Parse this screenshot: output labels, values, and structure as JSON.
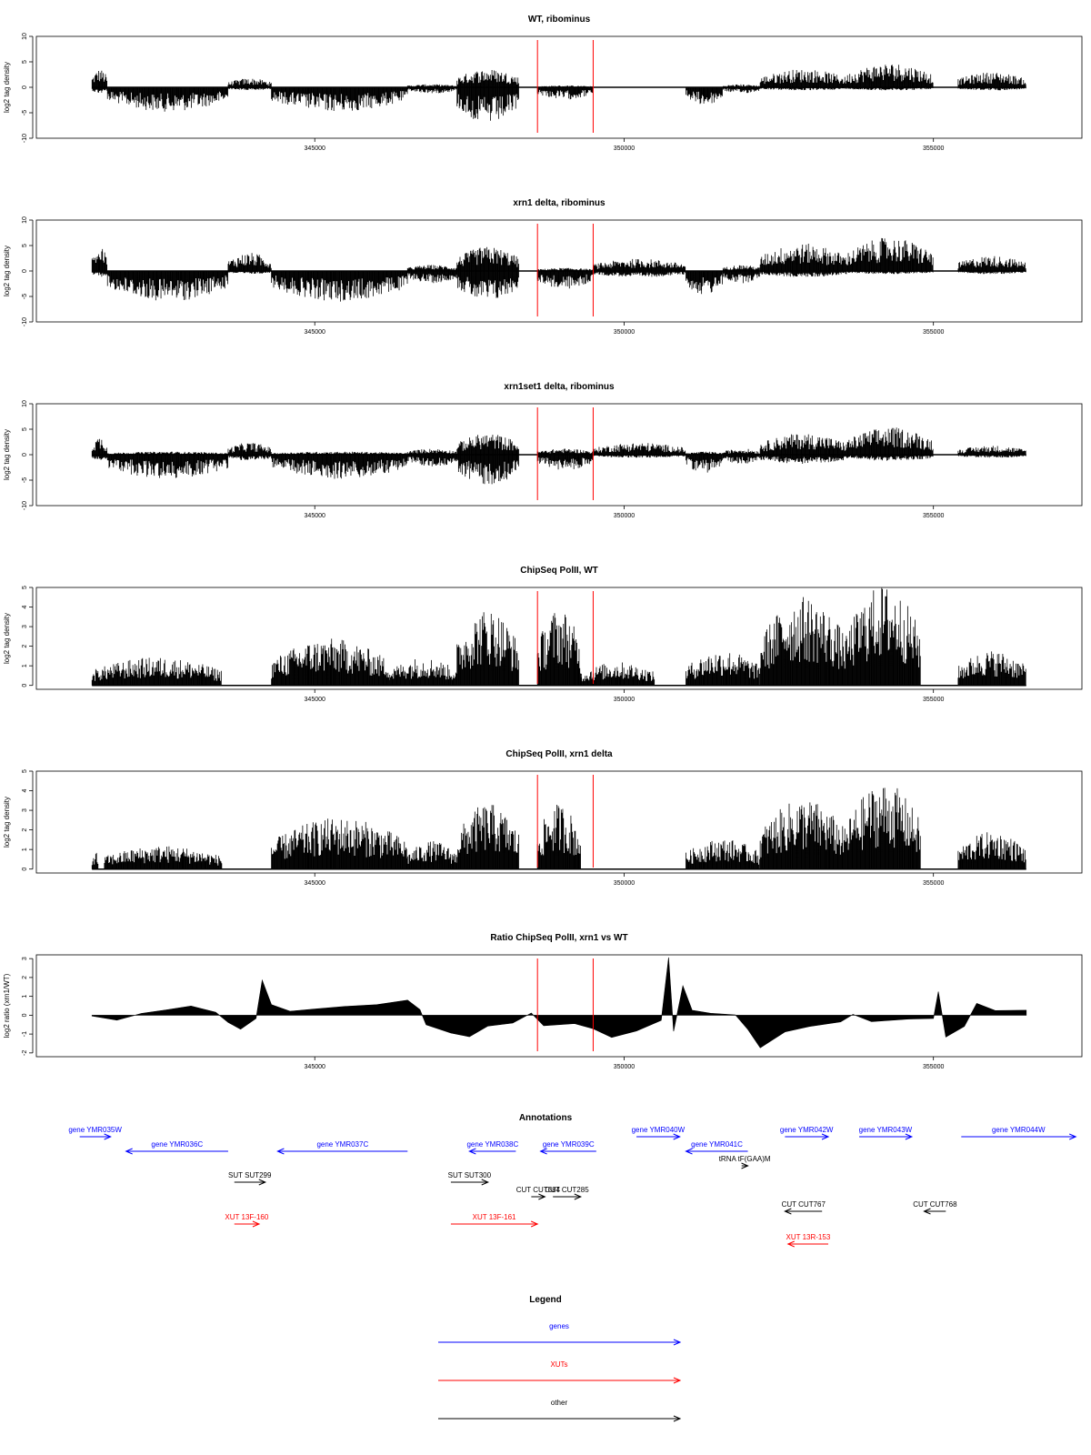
{
  "colors": {
    "frame": "#000000",
    "bars": "#000000",
    "marker": "#ff0000",
    "gene": "#0000ff",
    "xut": "#ff0000",
    "other": "#000000"
  },
  "chart_data": [
    {
      "type": "bar",
      "title": "WT, ribominus",
      "ylabel": "log2 tag density",
      "xlim": [
        340500,
        357400
      ],
      "ylim": [
        -10,
        10
      ],
      "yticks": [
        10,
        5,
        0,
        -5,
        -10
      ],
      "xticks": [
        345000,
        350000,
        355000
      ],
      "markers": [
        348600,
        349500
      ],
      "segments": [
        [
          341400,
          341650,
          3,
          -1
        ],
        [
          341650,
          343600,
          0,
          -4
        ],
        [
          343600,
          344300,
          1.5,
          -0.5
        ],
        [
          344300,
          346500,
          0,
          -4
        ],
        [
          346500,
          347300,
          0.5,
          -1
        ],
        [
          347300,
          348300,
          3,
          -6
        ],
        [
          348600,
          349500,
          0.3,
          -2
        ],
        [
          351000,
          351600,
          0,
          -3
        ],
        [
          351600,
          352200,
          0.5,
          -1
        ],
        [
          352200,
          353600,
          3,
          -0.5
        ],
        [
          353600,
          355000,
          4,
          -0.5
        ],
        [
          355400,
          356500,
          2.5,
          -0.5
        ]
      ]
    },
    {
      "type": "bar",
      "title": "xrn1 delta, ribominus",
      "ylabel": "log2 tag density",
      "xlim": [
        340500,
        357400
      ],
      "ylim": [
        -10,
        10
      ],
      "yticks": [
        10,
        5,
        0,
        -5,
        -10
      ],
      "xticks": [
        345000,
        350000,
        355000
      ],
      "markers": [
        348600,
        349500
      ],
      "segments": [
        [
          341400,
          341650,
          4,
          -1
        ],
        [
          341650,
          343600,
          0,
          -5
        ],
        [
          343600,
          344300,
          3,
          -0.5
        ],
        [
          344300,
          346500,
          0,
          -5
        ],
        [
          346500,
          347300,
          1,
          -2
        ],
        [
          347300,
          348300,
          4,
          -5
        ],
        [
          348600,
          349500,
          0.5,
          -3
        ],
        [
          349500,
          351000,
          2,
          -1
        ],
        [
          351000,
          351600,
          0,
          -4
        ],
        [
          351600,
          352200,
          1,
          -2
        ],
        [
          352200,
          353600,
          4.5,
          -1
        ],
        [
          353600,
          355000,
          5.5,
          -0.5
        ],
        [
          355400,
          356500,
          2.5,
          -0.5
        ]
      ]
    },
    {
      "type": "bar",
      "title": "xrn1set1 delta, ribominus",
      "ylabel": "log2 tag density",
      "xlim": [
        340500,
        357400
      ],
      "ylim": [
        -10,
        10
      ],
      "yticks": [
        10,
        5,
        0,
        -5,
        -10
      ],
      "xticks": [
        345000,
        350000,
        355000
      ],
      "markers": [
        348600,
        349500
      ],
      "segments": [
        [
          341400,
          341650,
          3,
          -1
        ],
        [
          341650,
          343600,
          0.5,
          -4
        ],
        [
          343600,
          344300,
          2,
          -1
        ],
        [
          344300,
          346500,
          0.5,
          -4
        ],
        [
          346500,
          347300,
          1,
          -2
        ],
        [
          347300,
          348300,
          3.5,
          -5
        ],
        [
          348600,
          349500,
          1,
          -2.5
        ],
        [
          349500,
          351000,
          2,
          -0.5
        ],
        [
          351000,
          351600,
          0.5,
          -3
        ],
        [
          351600,
          352200,
          1,
          -1.5
        ],
        [
          352200,
          353600,
          3.5,
          -1.5
        ],
        [
          353600,
          355000,
          4.5,
          -1
        ],
        [
          355400,
          356500,
          1.5,
          -0.5
        ]
      ]
    },
    {
      "type": "bar",
      "title": "ChipSeq PolII, WT",
      "ylabel": "log2 tag density",
      "xlim": [
        340500,
        357400
      ],
      "ylim": [
        -0.2,
        5
      ],
      "yticks": [
        5,
        4,
        3,
        2,
        1,
        0
      ],
      "xticks": [
        345000,
        350000,
        355000
      ],
      "markers": [
        348600,
        349500
      ],
      "segments": [
        [
          341400,
          343500,
          1.2,
          0
        ],
        [
          344300,
          346200,
          2,
          0
        ],
        [
          346200,
          347300,
          1.2,
          0
        ],
        [
          347300,
          348300,
          3.3,
          0
        ],
        [
          348600,
          349300,
          3.3,
          0
        ],
        [
          349300,
          350500,
          1,
          0
        ],
        [
          351000,
          352200,
          1.5,
          0
        ],
        [
          352200,
          353600,
          3.8,
          0
        ],
        [
          353600,
          354800,
          4.3,
          0
        ],
        [
          355400,
          356500,
          1.5,
          0
        ]
      ]
    },
    {
      "type": "bar",
      "title": "ChipSeq PolII, xrn1 delta",
      "ylabel": "log2 tag density",
      "xlim": [
        340500,
        357400
      ],
      "ylim": [
        -0.2,
        5
      ],
      "yticks": [
        5,
        4,
        3,
        2,
        1,
        0
      ],
      "xticks": [
        345000,
        350000,
        355000
      ],
      "markers": [
        348600,
        349500
      ],
      "segments": [
        [
          341400,
          341500,
          0.8,
          0
        ],
        [
          341600,
          343500,
          1,
          0
        ],
        [
          344300,
          346500,
          2.2,
          0
        ],
        [
          346500,
          347300,
          1.2,
          0
        ],
        [
          347300,
          348300,
          2.8,
          0
        ],
        [
          348600,
          349300,
          2.8,
          0
        ],
        [
          351000,
          352200,
          1.3,
          0
        ],
        [
          352200,
          353600,
          3,
          0
        ],
        [
          353600,
          354800,
          3.7,
          0
        ],
        [
          355400,
          356500,
          1.6,
          0
        ]
      ]
    },
    {
      "type": "area",
      "title": "Ratio ChipSeq PolII, xrn1 vs WT",
      "ylabel": "log2 ratio (xrn1/WT)",
      "xlim": [
        340500,
        357400
      ],
      "ylim": [
        -2.2,
        3.2
      ],
      "yticks": [
        3,
        2,
        1,
        0,
        -1,
        -2
      ],
      "xticks": [
        345000,
        350000,
        355000
      ],
      "markers": [
        348600,
        349500
      ],
      "profile": [
        [
          341400,
          -0.1
        ],
        [
          341800,
          -0.3
        ],
        [
          342200,
          0.1
        ],
        [
          342600,
          0.3
        ],
        [
          343000,
          0.5
        ],
        [
          343400,
          0.2
        ],
        [
          343600,
          -0.4
        ],
        [
          343800,
          -0.8
        ],
        [
          344050,
          -0.2
        ],
        [
          344150,
          1.8
        ],
        [
          344300,
          0.5
        ],
        [
          344600,
          0.2
        ],
        [
          345000,
          0.3
        ],
        [
          345500,
          0.5
        ],
        [
          346000,
          0.6
        ],
        [
          346500,
          0.8
        ],
        [
          346700,
          0.3
        ],
        [
          346800,
          -0.5
        ],
        [
          347200,
          -1.0
        ],
        [
          347500,
          -1.2
        ],
        [
          347800,
          -0.6
        ],
        [
          348200,
          -0.4
        ],
        [
          348500,
          0.1
        ],
        [
          348700,
          -0.5
        ],
        [
          349200,
          -0.4
        ],
        [
          349500,
          -0.7
        ],
        [
          349800,
          -1.2
        ],
        [
          350200,
          -0.8
        ],
        [
          350600,
          -0.3
        ],
        [
          350720,
          3.0
        ],
        [
          350800,
          -0.8
        ],
        [
          350950,
          1.5
        ],
        [
          351100,
          0.2
        ],
        [
          351400,
          0.1
        ],
        [
          351800,
          0.0
        ],
        [
          352000,
          -0.8
        ],
        [
          352200,
          -1.7
        ],
        [
          352600,
          -0.9
        ],
        [
          353000,
          -0.6
        ],
        [
          353500,
          -0.4
        ],
        [
          353700,
          0.1
        ],
        [
          354000,
          -0.3
        ],
        [
          354600,
          -0.2
        ],
        [
          355000,
          -0.2
        ],
        [
          355080,
          1.2
        ],
        [
          355200,
          -1.2
        ],
        [
          355500,
          -0.6
        ],
        [
          355700,
          0.6
        ],
        [
          356000,
          0.3
        ],
        [
          356300,
          0.2
        ],
        [
          356500,
          0.3
        ]
      ]
    }
  ],
  "annotations": {
    "title": "Annotations",
    "xlim": [
      340500,
      357400
    ],
    "features": [
      {
        "label": "gene YMR035W",
        "kind": "gene",
        "start": 341200,
        "end": 341700,
        "dir": 1,
        "row": 0
      },
      {
        "label": "gene YMR036C",
        "kind": "gene",
        "start": 341950,
        "end": 343600,
        "dir": -1,
        "row": 1
      },
      {
        "label": "gene YMR037C",
        "kind": "gene",
        "start": 344400,
        "end": 346500,
        "dir": -1,
        "row": 1
      },
      {
        "label": "gene YMR038C",
        "kind": "gene",
        "start": 347500,
        "end": 348250,
        "dir": -1,
        "row": 1
      },
      {
        "label": "gene YMR039C",
        "kind": "gene",
        "start": 348650,
        "end": 349550,
        "dir": -1,
        "row": 1
      },
      {
        "label": "gene YMR040W",
        "kind": "gene",
        "start": 350200,
        "end": 350900,
        "dir": 1,
        "row": 0
      },
      {
        "label": "gene YMR041C",
        "kind": "gene",
        "start": 351000,
        "end": 352000,
        "dir": -1,
        "row": 1
      },
      {
        "label": "tRNA tF(GAA)M",
        "kind": "other",
        "start": 351900,
        "end": 352000,
        "dir": 1,
        "row": 2
      },
      {
        "label": "gene YMR042W",
        "kind": "gene",
        "start": 352600,
        "end": 353300,
        "dir": 1,
        "row": 0
      },
      {
        "label": "gene YMR043W",
        "kind": "gene",
        "start": 353800,
        "end": 354650,
        "dir": 1,
        "row": 0
      },
      {
        "label": "gene YMR044W",
        "kind": "gene",
        "start": 355450,
        "end": 357300,
        "dir": 1,
        "row": 0
      },
      {
        "label": "SUT SUT299",
        "kind": "other",
        "start": 343700,
        "end": 344200,
        "dir": 1,
        "row": 3
      },
      {
        "label": "SUT SUT300",
        "kind": "other",
        "start": 347200,
        "end": 347800,
        "dir": 1,
        "row": 3
      },
      {
        "label": "CUT CUT684",
        "kind": "other",
        "start": 348500,
        "end": 348720,
        "dir": 1,
        "row": 4
      },
      {
        "label": "CUT CUT285",
        "kind": "other",
        "start": 348850,
        "end": 349300,
        "dir": 1,
        "row": 4
      },
      {
        "label": "CUT CUT767",
        "kind": "other",
        "start": 352600,
        "end": 353200,
        "dir": -1,
        "row": 5
      },
      {
        "label": "CUT CUT768",
        "kind": "other",
        "start": 354850,
        "end": 355200,
        "dir": -1,
        "row": 5
      },
      {
        "label": "XUT 13F-160",
        "kind": "xut",
        "start": 343700,
        "end": 344100,
        "dir": 1,
        "row": 6
      },
      {
        "label": "XUT 13F-161",
        "kind": "xut",
        "start": 347200,
        "end": 348600,
        "dir": 1,
        "row": 6
      },
      {
        "label": "XUT 13R-153",
        "kind": "xut",
        "start": 352650,
        "end": 353300,
        "dir": -1,
        "row": 7
      }
    ]
  },
  "legend": {
    "title": "Legend",
    "items": [
      {
        "label": "genes",
        "kind": "gene"
      },
      {
        "label": "XUTs",
        "kind": "xut"
      },
      {
        "label": "other",
        "kind": "other"
      }
    ]
  }
}
